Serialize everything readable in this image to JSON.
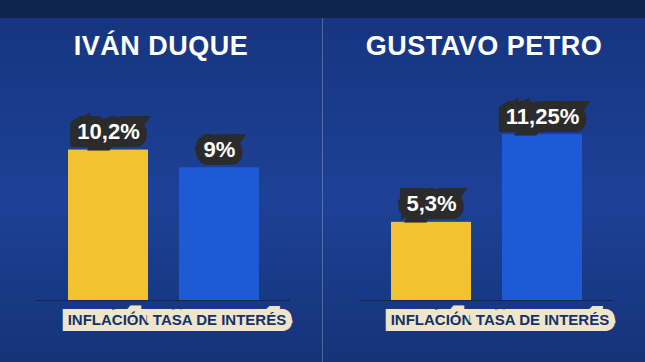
{
  "chart_data": [
    {
      "type": "bar",
      "title": "IVÁN DUQUE",
      "categories": [
        "INFLACIÓN",
        "TASA DE INTERÉS"
      ],
      "values": [
        10.2,
        9
      ],
      "value_labels": [
        "10,2%",
        "9%"
      ],
      "colors": [
        "#f2c230",
        "#1f5ad6"
      ],
      "ylim": [
        0,
        12
      ],
      "data_labels": true,
      "tick_labels": "x",
      "grid": false
    },
    {
      "type": "bar",
      "title": "GUSTAVO PETRO",
      "categories": [
        "INFLACIÓN",
        "TASA DE INTERÉS"
      ],
      "values": [
        5.3,
        11.25
      ],
      "value_labels": [
        "5,3%",
        "11,25%"
      ],
      "colors": [
        "#f2c230",
        "#1f5ad6"
      ],
      "ylim": [
        0,
        12
      ],
      "data_labels": true,
      "tick_labels": "x",
      "grid": false
    }
  ]
}
